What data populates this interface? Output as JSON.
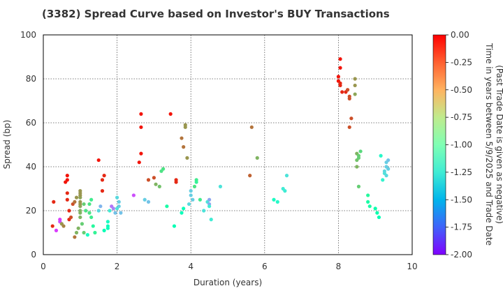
{
  "chart_data": {
    "type": "scatter",
    "title": "(3382)   Spread Curve based on Investor's BUY Transactions",
    "xlabel": "Duration (years)",
    "ylabel": "Spread (bp)",
    "xlim": [
      0,
      10
    ],
    "ylim": [
      0,
      100
    ],
    "xticks": [
      "0",
      "2",
      "4",
      "6",
      "8",
      "10"
    ],
    "yticks": [
      "0",
      "20",
      "40",
      "60",
      "80",
      "100"
    ],
    "grid": true,
    "colorbar": {
      "label_line1": "Time in years between 5/9/2025 and Trade Date",
      "label_line2": "(Past Trade Date is given as negative)",
      "range": [
        -2.0,
        0.0
      ],
      "ticks": [
        "0.00",
        "-0.25",
        "-0.50",
        "-0.75",
        "-1.00",
        "-1.25",
        "-1.50",
        "-1.75",
        "-2.00"
      ],
      "colormap": "rainbow"
    },
    "points": [
      [
        0.25,
        13,
        -0.1
      ],
      [
        0.28,
        24,
        -0.1
      ],
      [
        0.35,
        11,
        -1.85
      ],
      [
        0.45,
        15,
        -1.8
      ],
      [
        0.45,
        16,
        -1.85
      ],
      [
        0.5,
        14,
        -0.4
      ],
      [
        0.55,
        13,
        -0.35
      ],
      [
        0.6,
        33,
        -0.05
      ],
      [
        0.65,
        34,
        -0.05
      ],
      [
        0.65,
        36,
        -0.05
      ],
      [
        0.65,
        25,
        -0.1
      ],
      [
        0.65,
        28,
        -0.1
      ],
      [
        0.7,
        16,
        -0.1
      ],
      [
        0.7,
        20,
        -0.1
      ],
      [
        0.75,
        17,
        -0.2
      ],
      [
        0.8,
        23,
        -0.2
      ],
      [
        0.85,
        24,
        -0.3
      ],
      [
        0.85,
        8,
        -0.3
      ],
      [
        0.9,
        26,
        -0.4
      ],
      [
        0.9,
        10,
        -0.5
      ],
      [
        0.95,
        12,
        -0.5
      ],
      [
        1.0,
        17,
        -0.5
      ],
      [
        1.0,
        19,
        -0.5
      ],
      [
        1.0,
        20,
        -0.5
      ],
      [
        1.0,
        22,
        -0.45
      ],
      [
        1.0,
        23,
        -0.4
      ],
      [
        1.0,
        24,
        -0.4
      ],
      [
        1.0,
        26,
        -0.45
      ],
      [
        1.0,
        27,
        -0.4
      ],
      [
        1.0,
        28,
        -0.4
      ],
      [
        1.0,
        29,
        -0.4
      ],
      [
        1.05,
        14,
        -0.6
      ],
      [
        1.1,
        10,
        -0.6
      ],
      [
        1.1,
        23,
        -0.6
      ],
      [
        1.15,
        20,
        -0.7
      ],
      [
        1.2,
        9,
        -1.1
      ],
      [
        1.25,
        23,
        -0.7
      ],
      [
        1.25,
        19,
        -0.7
      ],
      [
        1.3,
        25,
        -0.75
      ],
      [
        1.3,
        17,
        -0.75
      ],
      [
        1.35,
        13,
        -0.85
      ],
      [
        1.4,
        10,
        -0.8
      ],
      [
        1.5,
        43,
        -0.05
      ],
      [
        1.5,
        20,
        -1.35
      ],
      [
        1.55,
        22,
        -1.5
      ],
      [
        1.6,
        34,
        -0.1
      ],
      [
        1.6,
        29,
        -0.1
      ],
      [
        1.65,
        36,
        -0.1
      ],
      [
        1.65,
        11,
        -1.0
      ],
      [
        1.75,
        13,
        -1.05
      ],
      [
        1.75,
        15,
        -1.1
      ],
      [
        1.75,
        12,
        -1.05
      ],
      [
        1.8,
        20,
        -1.25
      ],
      [
        1.85,
        22,
        -1.7
      ],
      [
        1.9,
        21,
        -1.65
      ],
      [
        1.95,
        19,
        -1.45
      ],
      [
        2.0,
        21,
        -1.3
      ],
      [
        2.0,
        26,
        -1.35
      ],
      [
        2.05,
        24,
        -1.4
      ],
      [
        2.05,
        22,
        -1.4
      ],
      [
        2.1,
        19,
        -1.45
      ],
      [
        2.45,
        27,
        -1.8
      ],
      [
        2.6,
        42,
        -0.05
      ],
      [
        2.65,
        46,
        -0.05
      ],
      [
        2.65,
        58,
        -0.05
      ],
      [
        2.65,
        64,
        -0.05
      ],
      [
        2.75,
        25,
        -1.4
      ],
      [
        2.85,
        24,
        -1.45
      ],
      [
        2.85,
        34,
        -0.2
      ],
      [
        3.0,
        35,
        -0.2
      ],
      [
        3.05,
        32,
        -0.5
      ],
      [
        3.15,
        31,
        -0.55
      ],
      [
        3.2,
        38,
        -0.7
      ],
      [
        3.25,
        39,
        -0.7
      ],
      [
        3.35,
        22,
        -0.9
      ],
      [
        3.45,
        64,
        -0.05
      ],
      [
        3.55,
        13,
        -1.0
      ],
      [
        3.6,
        33,
        -0.1
      ],
      [
        3.6,
        34,
        -0.1
      ],
      [
        3.75,
        53,
        -0.3
      ],
      [
        3.75,
        19,
        -1.05
      ],
      [
        3.8,
        49,
        -0.3
      ],
      [
        3.8,
        21,
        -1.05
      ],
      [
        3.85,
        58,
        -0.4
      ],
      [
        3.85,
        59,
        -0.4
      ],
      [
        3.9,
        44,
        -0.4
      ],
      [
        3.95,
        23,
        -1.35
      ],
      [
        4.0,
        29,
        -1.4
      ],
      [
        4.0,
        27,
        -1.4
      ],
      [
        4.05,
        25,
        -1.4
      ],
      [
        4.1,
        31,
        -0.7
      ],
      [
        4.15,
        34,
        -0.75
      ],
      [
        4.15,
        33,
        -0.8
      ],
      [
        4.25,
        25,
        -0.75
      ],
      [
        4.35,
        20,
        -1.3
      ],
      [
        4.45,
        24,
        -1.3
      ],
      [
        4.5,
        25,
        -1.55
      ],
      [
        4.5,
        23,
        -1.55
      ],
      [
        4.5,
        22,
        -1.25
      ],
      [
        4.55,
        16,
        -1.25
      ],
      [
        4.8,
        31,
        -1.3
      ],
      [
        5.6,
        36,
        -0.25
      ],
      [
        5.65,
        58,
        -0.3
      ],
      [
        5.8,
        44,
        -0.5
      ],
      [
        6.25,
        25,
        -1.1
      ],
      [
        6.35,
        24,
        -1.15
      ],
      [
        6.5,
        30,
        -1.25
      ],
      [
        6.55,
        29,
        -1.25
      ],
      [
        6.6,
        36,
        -1.3
      ],
      [
        8.0,
        79,
        -0.05
      ],
      [
        8.0,
        81,
        -0.05
      ],
      [
        8.05,
        85,
        -0.05
      ],
      [
        8.05,
        89,
        -0.05
      ],
      [
        8.05,
        78,
        -0.1
      ],
      [
        8.05,
        77,
        -0.1
      ],
      [
        8.1,
        74,
        -0.1
      ],
      [
        8.2,
        74,
        -0.1
      ],
      [
        8.25,
        75,
        -0.2
      ],
      [
        8.3,
        72,
        -0.2
      ],
      [
        8.3,
        71,
        -0.2
      ],
      [
        8.3,
        58,
        -0.2
      ],
      [
        8.35,
        62,
        -0.2
      ],
      [
        8.45,
        80,
        -0.4
      ],
      [
        8.45,
        77,
        -0.4
      ],
      [
        8.45,
        73,
        -0.45
      ],
      [
        8.5,
        46,
        -0.5
      ],
      [
        8.5,
        43,
        -0.55
      ],
      [
        8.5,
        40,
        -0.5
      ],
      [
        8.55,
        45,
        -0.6
      ],
      [
        8.55,
        44,
        -0.6
      ],
      [
        8.55,
        31,
        -0.6
      ],
      [
        8.6,
        47,
        -0.65
      ],
      [
        8.8,
        27,
        -0.85
      ],
      [
        8.8,
        24,
        -0.9
      ],
      [
        8.85,
        22,
        -0.9
      ],
      [
        9.0,
        21,
        -0.95
      ],
      [
        9.05,
        19,
        -0.95
      ],
      [
        9.1,
        17,
        -1.0
      ],
      [
        9.15,
        45,
        -1.15
      ],
      [
        9.2,
        34,
        -1.2
      ],
      [
        9.25,
        37,
        -1.3
      ],
      [
        9.25,
        38,
        -1.35
      ],
      [
        9.3,
        36,
        -1.35
      ],
      [
        9.3,
        40,
        -1.4
      ],
      [
        9.3,
        42,
        -1.4
      ],
      [
        9.35,
        43,
        -1.45
      ],
      [
        9.35,
        39,
        -1.4
      ]
    ]
  }
}
